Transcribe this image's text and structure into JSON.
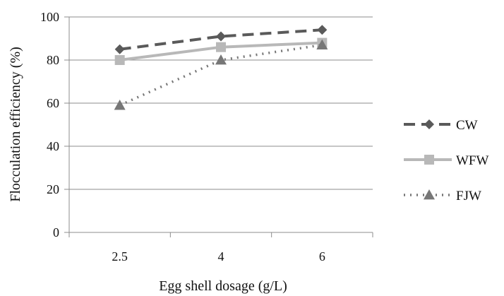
{
  "chart_data": {
    "type": "line",
    "xlabel": "Egg shell dosage (g/L)",
    "ylabel": "Flocculation efficiency (%)",
    "categories": [
      "2.5",
      "4",
      "6"
    ],
    "ylim": [
      0,
      100
    ],
    "yticks": [
      0,
      20,
      40,
      60,
      80,
      100
    ],
    "grid": true,
    "legend_position": "right",
    "series": [
      {
        "name": "CW",
        "values": [
          85,
          91,
          94
        ],
        "color": "#5a5a5a",
        "dash": "dashed",
        "marker": "diamond"
      },
      {
        "name": "WFW",
        "values": [
          80,
          86,
          88
        ],
        "color": "#b8b8b8",
        "dash": "solid",
        "marker": "square"
      },
      {
        "name": "FJW",
        "values": [
          59,
          80,
          87
        ],
        "color": "#777777",
        "dash": "dotted",
        "marker": "triangle"
      }
    ]
  }
}
